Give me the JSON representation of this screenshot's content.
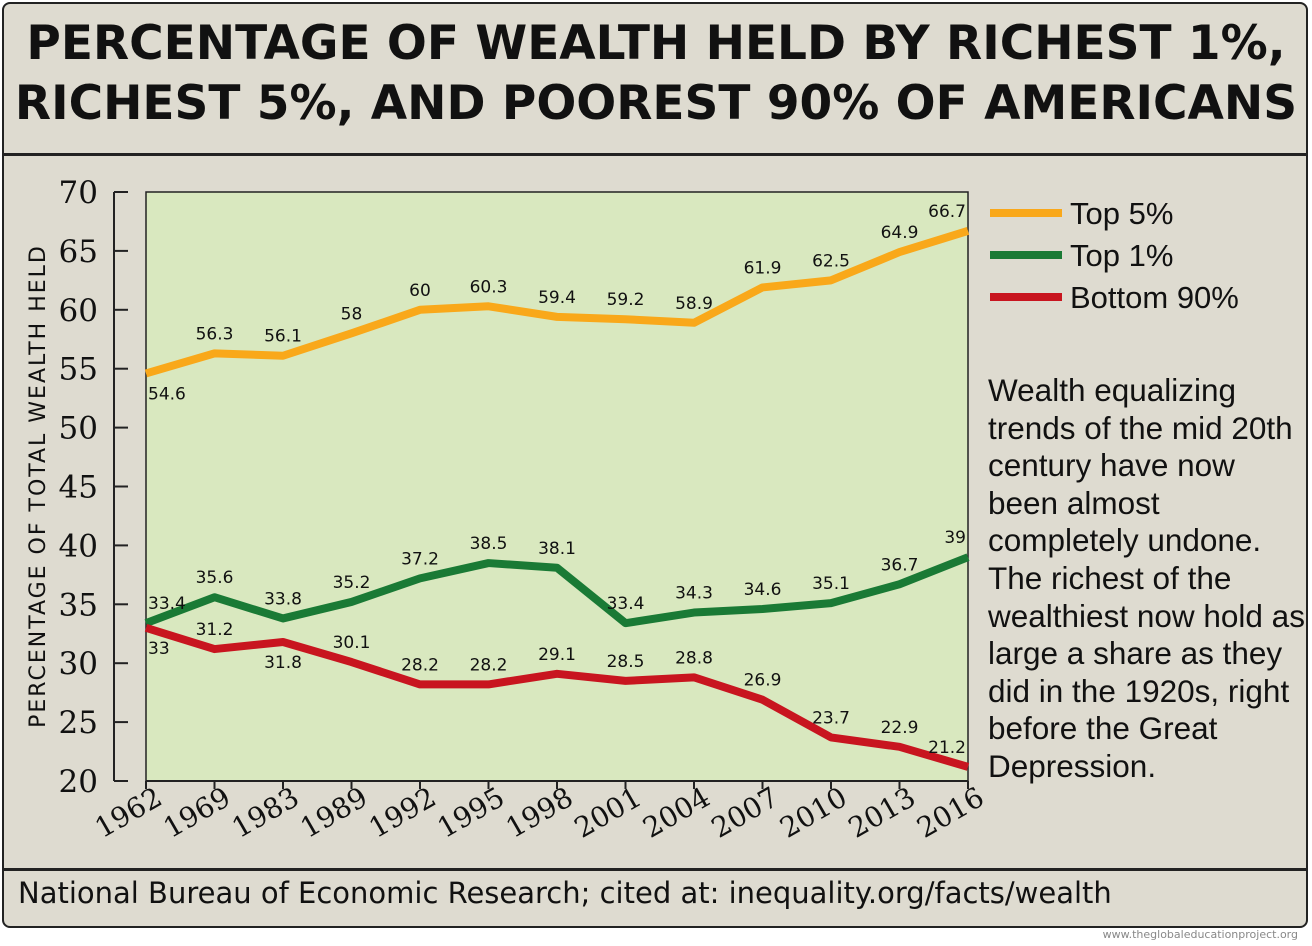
{
  "title_lines": [
    "PERCENTAGE OF WEALTH HELD BY RICHEST 1%,",
    "RICHEST 5%, AND POOREST 90% OF AMERICANS"
  ],
  "source": "National Bureau of Economic Research; cited at: inequality.org/facts/wealth",
  "watermark": "www.theglobaleducationproject.org",
  "note": "Wealth equalizing trends of the mid 20th century have now been almost completely undone. The richest of the wealthiest now hold as large a share as they did in the 1920s, right before the Great Depression.",
  "chart_data": {
    "type": "line",
    "title": "PERCENTAGE OF WEALTH HELD BY RICHEST 1%, RICHEST 5%, AND POOREST 90% OF AMERICANS",
    "xlabel": "",
    "ylabel": "PERCENTAGE OF TOTAL WEALTH HELD",
    "categories": [
      "1962",
      "1969",
      "1983",
      "1989",
      "1992",
      "1995",
      "1998",
      "2001",
      "2004",
      "2007",
      "2010",
      "2013",
      "2016"
    ],
    "ylim": [
      20,
      70
    ],
    "yticks": [
      20,
      25,
      30,
      35,
      40,
      45,
      50,
      55,
      60,
      65,
      70
    ],
    "grid": false,
    "legend_position": "right",
    "plot_background": "#d9e8bf",
    "series": [
      {
        "name": "Top 5%",
        "color": "#f9a81a",
        "values": [
          54.6,
          56.3,
          56.1,
          58,
          60,
          60.3,
          59.4,
          59.2,
          58.9,
          61.9,
          62.5,
          64.9,
          66.7
        ],
        "labels": [
          "54.6",
          "56.3",
          "56.1",
          "58",
          "60",
          "60.3",
          "59.4",
          "59.2",
          "58.9",
          "61.9",
          "62.5",
          "64.9",
          "66.7"
        ]
      },
      {
        "name": "Top 1%",
        "color": "#1a7a35",
        "values": [
          33.4,
          35.6,
          33.8,
          35.2,
          37.2,
          38.5,
          38.1,
          33.4,
          34.3,
          34.6,
          35.1,
          36.7,
          39
        ],
        "labels": [
          "33.4",
          "35.6",
          "33.8",
          "35.2",
          "37.2",
          "38.5",
          "38.1",
          "33.4",
          "34.3",
          "34.6",
          "35.1",
          "36.7",
          "39"
        ]
      },
      {
        "name": "Bottom 90%",
        "color": "#c8151f",
        "values": [
          33,
          31.2,
          31.8,
          30.1,
          28.2,
          28.2,
          29.1,
          28.5,
          28.8,
          26.9,
          23.7,
          22.9,
          21.2
        ],
        "labels": [
          "33",
          "31.2",
          "31.8",
          "30.1",
          "28.2",
          "28.2",
          "29.1",
          "28.5",
          "28.8",
          "26.9",
          "23.7",
          "22.9",
          "21.2"
        ]
      }
    ]
  }
}
